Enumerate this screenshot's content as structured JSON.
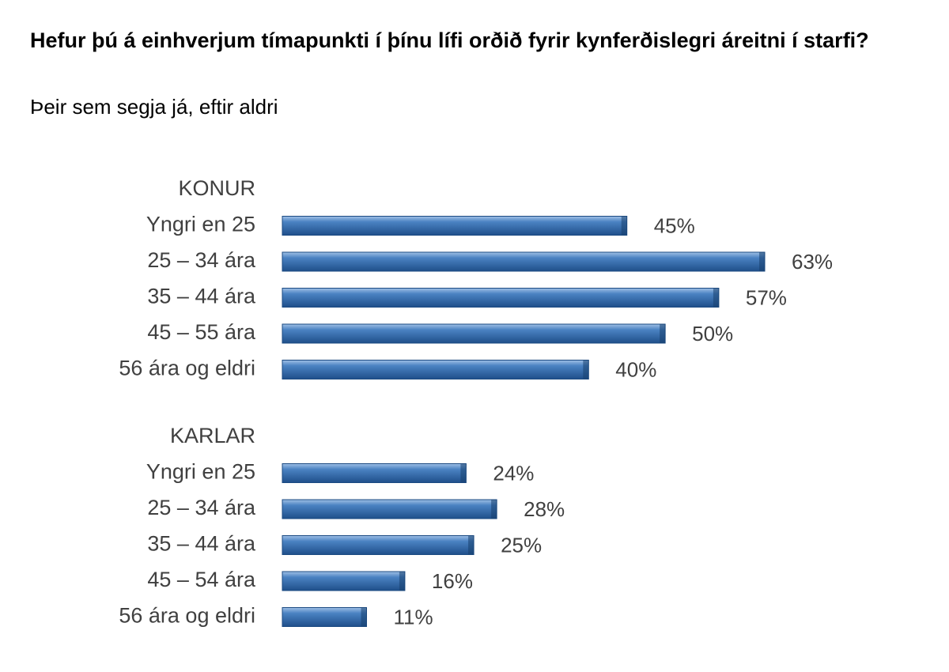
{
  "chart_data": {
    "type": "bar",
    "orientation": "horizontal",
    "title": "Hefur þú á einhverjum tímapunkti í þínu lífi orðið fyrir kynferðislegri áreitni í starfi?",
    "subtitle": "Þeir sem segja já, eftir aldri",
    "unit": "%",
    "xlim": [
      0,
      70
    ],
    "grid": false,
    "legend": "none",
    "bar_color": "#3D73B2",
    "groups": [
      {
        "name": "KONUR",
        "categories": [
          "Yngri en 25",
          "25 – 34 ára",
          "35 – 44 ára",
          "45 – 55 ára",
          "56 ára og eldri"
        ],
        "values": [
          45,
          63,
          57,
          50,
          40
        ],
        "labels": [
          "45%",
          "63%",
          "57%",
          "50%",
          "40%"
        ]
      },
      {
        "name": "KARLAR",
        "categories": [
          "Yngri en 25",
          "25 – 34 ára",
          "35 – 44 ára",
          "45 – 54 ára",
          "56 ára og eldri"
        ],
        "values": [
          24,
          28,
          25,
          16,
          11
        ],
        "labels": [
          "24%",
          "28%",
          "25%",
          "16%",
          "11%"
        ]
      }
    ]
  }
}
